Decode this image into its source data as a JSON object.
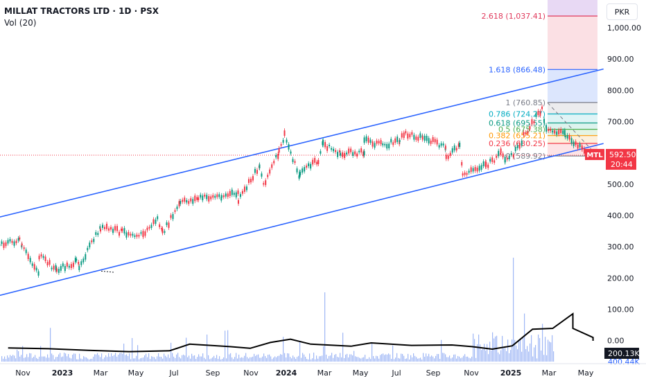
{
  "header": {
    "title": "MILLAT TRACTORS LTD · 1D · PSX",
    "indicator": "Vol (20)"
  },
  "currency_button": "PKR",
  "chart_data": {
    "type": "candlestick",
    "symbol": "MTL",
    "price_axis": {
      "ticks": [
        "1,000.00",
        "900.00",
        "800.00",
        "700.00",
        "600.00",
        "500.00",
        "400.00",
        "300.00",
        "200.00",
        "100.00",
        "0.00"
      ],
      "ylim": [
        0,
        1100
      ]
    },
    "time_axis": {
      "ticks": [
        "Nov",
        "2023",
        "Mar",
        "May",
        "Jul",
        "Sep",
        "Nov",
        "2024",
        "Mar",
        "May",
        "Jul",
        "Sep",
        "Nov",
        "2025",
        "Mar",
        "May"
      ]
    },
    "last_price": {
      "label": "MTL",
      "price": "592.50",
      "countdown": "20:44",
      "color": "#f23645"
    },
    "volume_badge": {
      "value": "200.13K",
      "partial": "400.44K"
    },
    "fibonacci": {
      "levels": [
        {
          "ratio": "2.618",
          "price": "1,037.41",
          "color": "#e0385b"
        },
        {
          "ratio": "1.618",
          "price": "866.48",
          "color": "#2962ff"
        },
        {
          "ratio": "1",
          "price": "760.85",
          "color": "#787b86"
        },
        {
          "ratio": "0.786",
          "price": "724.27",
          "color": "#00acc1"
        },
        {
          "ratio": "0.618",
          "price": "695.55",
          "color": "#089981"
        },
        {
          "ratio": "0.5",
          "price": "675.38",
          "color": "#4caf50"
        },
        {
          "ratio": "0.382",
          "price": "655.21",
          "color": "#ff9800"
        },
        {
          "ratio": "0.236",
          "price": "630.25",
          "color": "#f23645"
        },
        {
          "ratio": "0",
          "price": "589.92",
          "color": "#787b86"
        }
      ]
    },
    "channel": {
      "color": "#2962ff",
      "upper": [
        [
          "Sep 2022",
          378
        ],
        [
          "Apr 2025",
          868
        ]
      ],
      "lower": [
        [
          "Sep 2022",
          127
        ],
        [
          "Apr 2025",
          630
        ]
      ]
    },
    "price_path": [
      [
        "Oct 2022",
        310
      ],
      [
        "Oct 2022",
        320
      ],
      [
        "Nov 2022",
        318
      ],
      [
        "Nov 2022",
        300
      ],
      [
        "Dec 2022",
        270
      ],
      [
        "Dec 2022",
        218
      ],
      [
        "Jan 2023",
        225
      ],
      [
        "Feb 2023",
        240
      ],
      [
        "Feb 2023",
        250
      ],
      [
        "Mar 2023",
        360
      ],
      [
        "Apr 2023",
        348
      ],
      [
        "May 2023",
        338
      ],
      [
        "Jun 2023",
        342
      ],
      [
        "Jun 2023",
        390
      ],
      [
        "Jul 2023",
        440
      ],
      [
        "Aug 2023",
        455
      ],
      [
        "Sep 2023",
        462
      ],
      [
        "Oct 2023",
        445
      ],
      [
        "Oct 2023",
        470
      ],
      [
        "Nov 2023",
        500
      ],
      [
        "Nov 2023",
        560
      ],
      [
        "Dec 2023",
        655
      ],
      [
        "Dec 2023",
        600
      ],
      [
        "Jan 2024",
        540
      ],
      [
        "Jan 2024",
        525
      ],
      [
        "Feb 2024",
        575
      ],
      [
        "Feb 2024",
        630
      ],
      [
        "Mar 2024",
        595
      ],
      [
        "Apr 2024",
        605
      ],
      [
        "Apr 2024",
        640
      ],
      [
        "May 2024",
        625
      ],
      [
        "Jun 2024",
        660
      ],
      [
        "Jun 2024",
        640
      ],
      [
        "Jul 2024",
        650
      ],
      [
        "Aug 2024",
        615
      ],
      [
        "Aug 2024",
        590
      ],
      [
        "Sep 2024",
        530
      ],
      [
        "Sep 2024",
        620
      ],
      [
        "Oct 2024",
        565
      ],
      [
        "Oct 2024",
        555
      ],
      [
        "Nov 2024",
        570
      ],
      [
        "Nov 2024",
        600
      ],
      [
        "Dec 2024",
        625
      ],
      [
        "Dec 2024",
        655
      ],
      [
        "Jan 2025",
        740
      ],
      [
        "Jan 2025",
        680
      ],
      [
        "Feb 2025",
        650
      ],
      [
        "Feb 2025",
        660
      ],
      [
        "Mar 2025",
        620
      ],
      [
        "Mar 2025",
        592
      ]
    ],
    "volume_ma_path": [
      [
        "Oct 2022",
        13
      ],
      [
        "Dec 2022",
        11
      ],
      [
        "Feb 2023",
        7
      ],
      [
        "Apr 2023",
        4
      ],
      [
        "Jun 2023",
        6
      ],
      [
        "Jul 2023",
        22
      ],
      [
        "Sep 2023",
        16
      ],
      [
        "Oct 2023",
        12
      ],
      [
        "Nov 2023",
        26
      ],
      [
        "Dec 2023",
        34
      ],
      [
        "Jan 2024",
        22
      ],
      [
        "Mar 2024",
        17
      ],
      [
        "Apr 2024",
        25
      ],
      [
        "Jun 2024",
        19
      ],
      [
        "Aug 2024",
        20
      ],
      [
        "Sep 2024",
        16
      ],
      [
        "Oct 2024",
        10
      ],
      [
        "Nov 2024",
        18
      ],
      [
        "Dec 2024",
        58
      ],
      [
        "Jan 2025",
        60
      ],
      [
        "Feb 2025",
        95
      ],
      [
        "Feb 2025",
        60
      ],
      [
        "Mar 2025",
        38
      ],
      [
        "Mar 2025",
        30
      ]
    ]
  }
}
